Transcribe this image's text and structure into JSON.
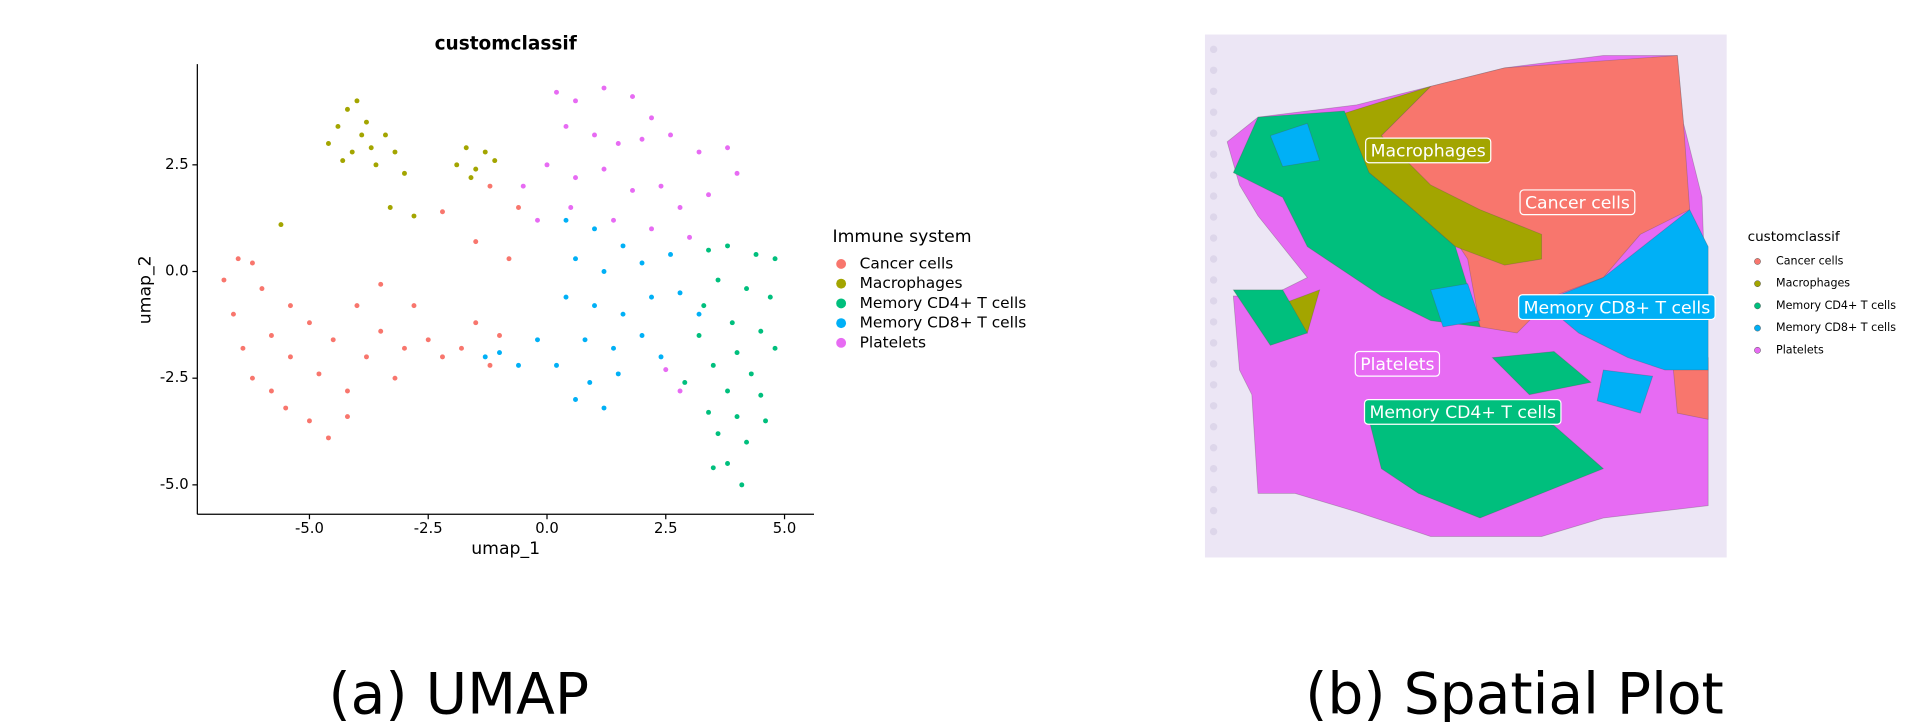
{
  "chart_data": [
    {
      "type": "scatter",
      "title": "customclassif",
      "xlabel": "umap_1",
      "ylabel": "umap_2",
      "legend_title": "Immune system",
      "caption": "(a) UMAP",
      "xlim": [
        -7.36,
        5.62
      ],
      "ylim": [
        -5.69,
        4.86
      ],
      "xticks": [
        {
          "value": -5,
          "label": "-5.0"
        },
        {
          "value": -2.5,
          "label": "-2.5"
        },
        {
          "value": 0,
          "label": "0.0"
        },
        {
          "value": 2.5,
          "label": "2.5"
        },
        {
          "value": 5,
          "label": "5.0"
        }
      ],
      "yticks": [
        {
          "value": -5,
          "label": "-5.0"
        },
        {
          "value": -2.5,
          "label": "-2.5"
        },
        {
          "value": 0,
          "label": "0.0"
        },
        {
          "value": 2.5,
          "label": "2.5"
        }
      ],
      "series": [
        {
          "name": "Cancer cells",
          "color": "#F8766D",
          "x": [
            -6.8,
            -6.5,
            -6.2,
            -6.6,
            -6.4,
            -6.2,
            -5.8,
            -5.5,
            -5,
            -4.6,
            -4.2,
            -5.8,
            -5.4,
            -5,
            -4.8,
            -4.5,
            -4.2,
            -4,
            -3.8,
            -3.5,
            -3.5,
            -3.2,
            -3,
            -2.8,
            -2.5,
            -2.2,
            -1.8,
            -1.5,
            -1.2,
            -1,
            -0.8,
            -1.5,
            -2.2,
            -1.2,
            -0.6,
            -5.4,
            -6
          ],
          "y": [
            -0.2,
            0.3,
            0.2,
            -1,
            -1.8,
            -2.5,
            -2.8,
            -3.2,
            -3.5,
            -3.9,
            -3.4,
            -1.5,
            -2,
            -1.2,
            -2.4,
            -1.6,
            -2.8,
            -0.8,
            -2,
            -1.4,
            -0.3,
            -2.5,
            -1.8,
            -0.8,
            -1.6,
            -2,
            -1.8,
            -1.2,
            -2.2,
            -1.5,
            0.3,
            0.7,
            1.4,
            2,
            1.5,
            -0.8,
            -0.4
          ]
        },
        {
          "name": "Macrophages",
          "color": "#A3A500",
          "x": [
            -4.6,
            -4.4,
            -4.2,
            -4,
            -3.8,
            -4.1,
            -3.7,
            -3.4,
            -3.6,
            -4.3,
            -3.9,
            -3.2,
            -3,
            -2.8,
            -1.9,
            -1.7,
            -1.5,
            -1.3,
            -1.6,
            -1.1,
            -5.6,
            -3.3
          ],
          "y": [
            3,
            3.4,
            3.8,
            4,
            3.5,
            2.8,
            2.9,
            3.2,
            2.5,
            2.6,
            3.2,
            2.8,
            2.3,
            1.3,
            2.5,
            2.9,
            2.4,
            2.8,
            2.2,
            2.6,
            1.1,
            1.5
          ]
        },
        {
          "name": "Memory CD4+ T cells",
          "color": "#00BF7D",
          "x": [
            3.4,
            3.8,
            4.4,
            4.8,
            3.6,
            4.2,
            4.7,
            3.3,
            3.9,
            4.5,
            4.8,
            4,
            3.5,
            4.3,
            3.8,
            4.5,
            3.4,
            4,
            3.6,
            4.2,
            3.8,
            4.1,
            3.5,
            2.9,
            3.2,
            4.6
          ],
          "y": [
            0.5,
            0.6,
            0.4,
            0.3,
            -0.2,
            -0.4,
            -0.6,
            -0.8,
            -1.2,
            -1.4,
            -1.8,
            -1.9,
            -2.2,
            -2.4,
            -2.8,
            -2.9,
            -3.3,
            -3.4,
            -3.8,
            -4,
            -4.5,
            -5,
            -4.6,
            -2.6,
            -1.5,
            -3.5
          ]
        },
        {
          "name": "Memory CD8+ T cells",
          "color": "#00B0F6",
          "x": [
            0.4,
            1,
            1.6,
            0.6,
            1.2,
            2,
            2.6,
            0.4,
            1,
            1.6,
            2.2,
            2.8,
            0.8,
            1.4,
            2,
            0.2,
            0.9,
            1.5,
            0.6,
            1.2,
            -0.2,
            -0.6,
            -1,
            -1.3,
            3.2,
            2.4
          ],
          "y": [
            1.2,
            1,
            0.6,
            0.3,
            0,
            0.2,
            0.4,
            -0.6,
            -0.8,
            -1,
            -0.6,
            -0.5,
            -1.6,
            -1.8,
            -1.5,
            -2.2,
            -2.6,
            -2.4,
            -3,
            -3.2,
            -1.6,
            -2.2,
            -1.9,
            -2,
            -1,
            -2
          ]
        },
        {
          "name": "Platelets",
          "color": "#E76BF3",
          "x": [
            0.2,
            0.6,
            1.2,
            1.8,
            2.2,
            0.4,
            1,
            1.5,
            2,
            2.6,
            3.2,
            3.8,
            4,
            0,
            0.6,
            1.2,
            1.8,
            2.4,
            2.8,
            3.4,
            -0.5,
            -0.2,
            0.5,
            1.4,
            2.2,
            3,
            2.5,
            2.8
          ],
          "y": [
            4.2,
            4,
            4.3,
            4.1,
            3.6,
            3.4,
            3.2,
            3,
            3.1,
            3.2,
            2.8,
            2.9,
            2.3,
            2.5,
            2.2,
            2.4,
            1.9,
            2,
            1.5,
            1.8,
            2,
            1.2,
            1.5,
            1.2,
            1,
            0.8,
            -2.3,
            -2.8
          ]
        }
      ]
    },
    {
      "type": "spatial",
      "legend_title": "customclassif",
      "caption": "(b) Spatial Plot",
      "series": [
        {
          "name": "Cancer cells",
          "color": "#F8766D"
        },
        {
          "name": "Macrophages",
          "color": "#A3A500"
        },
        {
          "name": "Memory CD4+ T cells",
          "color": "#00BF7D"
        },
        {
          "name": "Memory CD8+ T cells",
          "color": "#00B0F6"
        },
        {
          "name": "Platelets",
          "color": "#E76BF3"
        }
      ],
      "annotations": [
        {
          "text": "Macrophages",
          "color": "#A3A500"
        },
        {
          "text": "Cancer cells",
          "color": "#F8766D"
        },
        {
          "text": "Memory CD8+ T cells",
          "color": "#00B0F6"
        },
        {
          "text": "Platelets",
          "color": "#E76BF3"
        },
        {
          "text": "Memory CD4+ T cells",
          "color": "#00BF7D"
        }
      ]
    }
  ]
}
